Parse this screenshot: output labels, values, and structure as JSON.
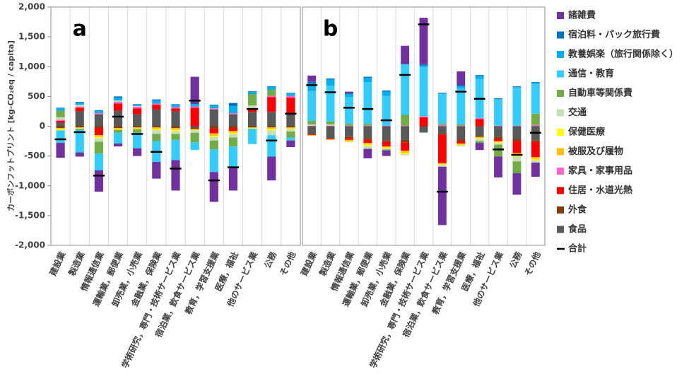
{
  "chart_data": [
    {
      "type": "bar",
      "stacked": true,
      "title": "a",
      "ylabel": "カーボンフットプリント [kg-CO₂eq / capita]",
      "ylim": [
        -2000,
        2000
      ],
      "yticks": [
        {
          "value": 2000,
          "label": "2,000"
        },
        {
          "value": 1500,
          "label": "1,500"
        },
        {
          "value": 1000,
          "label": "1,000"
        },
        500,
        0,
        -500,
        {
          "value": -1000,
          "label": "-1,000"
        },
        {
          "value": -1500,
          "label": "-1,500"
        },
        {
          "value": -2000,
          "label": "-2,000"
        }
      ],
      "categories": [
        "建設業",
        "製造業",
        "情報通信業",
        "運輸業，郵便業",
        "卸売業，小売業",
        "金融業，保険業",
        "学術研究，専門・技術サービス業",
        "宿泊業，飲食サービス業",
        "教育，学習支援業",
        "医療，福祉",
        "他のサービス業",
        "公務",
        "その他"
      ],
      "series": [
        {
          "name": "食品",
          "color": "#595959",
          "values": [
            60,
            250,
            200,
            260,
            200,
            280,
            250,
            -30,
            280,
            200,
            240,
            240,
            200
          ]
        },
        {
          "name": "外食",
          "color": "#843c0c",
          "values": [
            -30,
            -20,
            -30,
            -30,
            -20,
            -20,
            -30,
            -20,
            -40,
            -30,
            -20,
            -20,
            -20
          ]
        },
        {
          "name": "住居・水道光熱",
          "color": "#ff0000",
          "values": [
            30,
            60,
            -120,
            120,
            100,
            80,
            50,
            310,
            -80,
            -50,
            40,
            250,
            280
          ]
        },
        {
          "name": "家具・家事用品",
          "color": "#ff66cc",
          "values": [
            20,
            20,
            20,
            30,
            30,
            20,
            20,
            20,
            20,
            20,
            20,
            20,
            30
          ]
        },
        {
          "name": "被服及び履物",
          "color": "#ffc000",
          "values": [
            -20,
            -10,
            -30,
            -20,
            -20,
            -30,
            -30,
            -10,
            -40,
            -30,
            -10,
            -30,
            -20
          ]
        },
        {
          "name": "保健医療",
          "color": "#ffff00",
          "values": [
            -20,
            -10,
            -20,
            -10,
            -10,
            -20,
            -20,
            -10,
            -20,
            -20,
            -10,
            -20,
            -10
          ]
        },
        {
          "name": "交通",
          "color": "#c5e0b4",
          "values": [
            40,
            30,
            -60,
            20,
            10,
            -60,
            -50,
            -40,
            -60,
            -60,
            50,
            -80,
            -40
          ]
        },
        {
          "name": "自動車等関係費",
          "color": "#70ad47",
          "values": [
            110,
            -20,
            -200,
            -50,
            -60,
            -120,
            -100,
            -160,
            -150,
            -150,
            190,
            100,
            -100
          ]
        },
        {
          "name": "通信・教育",
          "color": "#33ccff",
          "values": [
            -210,
            -380,
            -280,
            -180,
            -260,
            -350,
            -340,
            -130,
            -380,
            -350,
            -260,
            -360,
            -50
          ]
        },
        {
          "name": "教養娯楽（旅行関係除く）",
          "color": "#00b0f0",
          "values": [
            40,
            40,
            40,
            50,
            20,
            50,
            40,
            40,
            50,
            120,
            40,
            50,
            40
          ]
        },
        {
          "name": "宿泊料・パック旅行費",
          "color": "#0070c0",
          "values": [
            10,
            10,
            10,
            20,
            10,
            20,
            10,
            10,
            10,
            50,
            10,
            10,
            10
          ]
        },
        {
          "name": "諸雑費",
          "color": "#7030a0",
          "values": [
            -250,
            -70,
            -360,
            -50,
            -130,
            -280,
            -510,
            450,
            -500,
            -390,
            0,
            -400,
            -110
          ]
        }
      ],
      "totals": {
        "name": "合計",
        "color": "#000000",
        "values": [
          -220,
          -100,
          -830,
          160,
          -130,
          -430,
          -710,
          430,
          -910,
          -690,
          290,
          -240,
          210
        ]
      }
    },
    {
      "type": "bar",
      "stacked": true,
      "title": "b",
      "ylim": [
        -2000,
        2000
      ],
      "categories": [
        "建設業",
        "製造業",
        "情報通信業",
        "運輸業，郵便業",
        "卸売業，小売業",
        "金融業，保険業",
        "学術研究，専門・技術サービス業",
        "宿泊業，飲食サービス業",
        "教育，学習支援業",
        "医療，福祉",
        "他のサービス業",
        "公務",
        "その他"
      ],
      "series": [
        {
          "values": [
            -130,
            -200,
            -180,
            -200,
            -240,
            -230,
            -100,
            -120,
            -220,
            -160,
            -180,
            -220,
            -240
          ]
        },
        {
          "values": [
            -10,
            -10,
            -20,
            -30,
            -20,
            -40,
            0,
            -20,
            -30,
            -20,
            -30,
            -30,
            -20
          ]
        },
        {
          "values": [
            -10,
            -10,
            -30,
            -50,
            -80,
            -140,
            150,
            -480,
            -40,
            120,
            -40,
            -200,
            -260
          ]
        },
        {
          "values": [
            10,
            10,
            10,
            10,
            10,
            10,
            20,
            20,
            10,
            20,
            10,
            10,
            20
          ]
        },
        {
          "values": [
            -10,
            -10,
            -20,
            -30,
            -20,
            -40,
            0,
            -20,
            -20,
            -20,
            -20,
            -40,
            -30
          ]
        },
        {
          "values": [
            0,
            0,
            -10,
            -20,
            -10,
            -20,
            0,
            -10,
            -10,
            -10,
            -10,
            -20,
            -20
          ]
        },
        {
          "values": [
            20,
            20,
            -10,
            -50,
            -20,
            -20,
            0,
            -30,
            -20,
            -40,
            -30,
            -80,
            -40
          ]
        },
        {
          "values": [
            60,
            50,
            30,
            30,
            -20,
            180,
            -10,
            20,
            20,
            -30,
            -200,
            -200,
            190
          ]
        },
        {
          "values": [
            500,
            600,
            450,
            700,
            500,
            850,
            820,
            500,
            600,
            650,
            440,
            640,
            500
          ]
        },
        {
          "values": [
            120,
            100,
            50,
            70,
            70,
            0,
            30,
            10,
            40,
            60,
            10,
            10,
            20
          ]
        },
        {
          "values": [
            40,
            20,
            10,
            20,
            20,
            10,
            20,
            10,
            20,
            10,
            10,
            10,
            10
          ]
        },
        {
          "values": [
            100,
            0,
            30,
            -160,
            -90,
            300,
            780,
            -980,
            230,
            -120,
            -350,
            -360,
            -240
          ]
        }
      ],
      "totals": {
        "values": [
          690,
          570,
          310,
          290,
          100,
          860,
          1710,
          -1100,
          580,
          460,
          -390,
          -480,
          -110
        ]
      }
    }
  ]
}
